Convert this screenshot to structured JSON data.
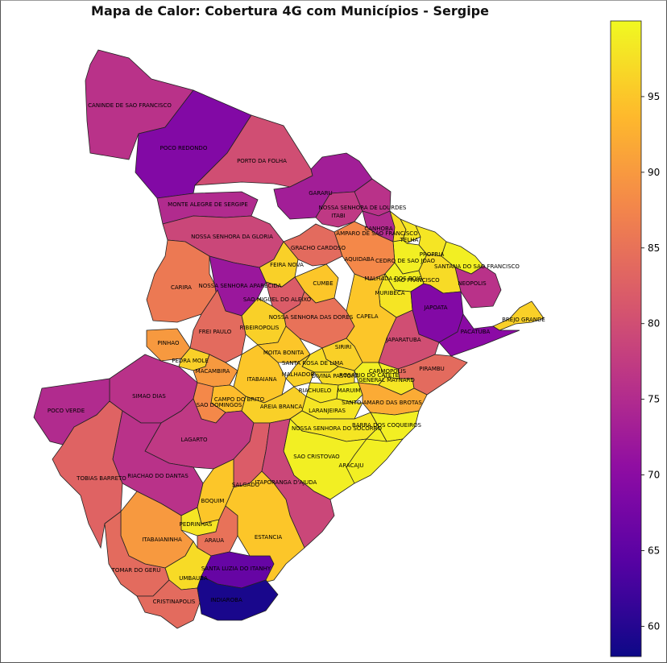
{
  "title": "Mapa de Calor: Cobertura 4G com Municípios - Sergipe",
  "colormap": "plasma",
  "colorbar": {
    "min": 58,
    "max": 100,
    "ticks": [
      "60",
      "65",
      "70",
      "75",
      "80",
      "85",
      "90",
      "95"
    ]
  },
  "chart_data": {
    "type": "choropleth",
    "value_range": [
      58,
      100
    ],
    "municipalities": [
      {
        "name": "CANINDE DE SAO FRANCISCO",
        "value": 76
      },
      {
        "name": "POCO REDONDO",
        "value": 69
      },
      {
        "name": "PORTO DA FOLHA",
        "value": 80
      },
      {
        "name": "GARARU",
        "value": 73
      },
      {
        "name": "MONTE ALEGRE DE SERGIPE",
        "value": 75
      },
      {
        "name": "NOSSA SENHORA DE LOURDES",
        "value": 76
      },
      {
        "name": "ITABI",
        "value": 77
      },
      {
        "name": "CANHOBA",
        "value": 75
      },
      {
        "name": "AMPARO DE SAO FRANCISCO",
        "value": 97
      },
      {
        "name": "TELHA",
        "value": 98
      },
      {
        "name": "NOSSA SENHORA DA GLORIA",
        "value": 79
      },
      {
        "name": "GRACHO CARDOSO",
        "value": 84
      },
      {
        "name": "PROPRIA",
        "value": 98
      },
      {
        "name": "CEDRO DE SAO JOAO",
        "value": 99
      },
      {
        "name": "AQUIDABA",
        "value": 88
      },
      {
        "name": "FEIRA NOVA",
        "value": 96
      },
      {
        "name": "SANTANA DO SAO FRANCISCO",
        "value": 99
      },
      {
        "name": "NEOPOLIS",
        "value": 76
      },
      {
        "name": "MALHADA DOS BOIS",
        "value": 99
      },
      {
        "name": "SAO FRANCISCO",
        "value": 97
      },
      {
        "name": "CARIRA",
        "value": 86
      },
      {
        "name": "NOSSA SENHORA APARECIDA",
        "value": 72
      },
      {
        "name": "CUMBE",
        "value": 95
      },
      {
        "name": "MURIBECA",
        "value": 98
      },
      {
        "name": "SAO MIGUEL DO ALEIXO",
        "value": 82
      },
      {
        "name": "JAPOATA",
        "value": 69
      },
      {
        "name": "ILHA DAS FLORES",
        "value": 99
      },
      {
        "name": "NOSSA SENHORA DAS DORES",
        "value": 85
      },
      {
        "name": "CAPELA",
        "value": 95
      },
      {
        "name": "BREJO GRANDE",
        "value": 96
      },
      {
        "name": "RIBEIROPOLIS",
        "value": 96
      },
      {
        "name": "FREI PAULO",
        "value": 84
      },
      {
        "name": "PACATUBA",
        "value": 70
      },
      {
        "name": "PINHAO",
        "value": 90
      },
      {
        "name": "SIRIRI",
        "value": 96
      },
      {
        "name": "JAPARATUBA",
        "value": 80
      },
      {
        "name": "MOITA BONITA",
        "value": 95
      },
      {
        "name": "SANTA ROSA DE LIMA",
        "value": 97
      },
      {
        "name": "PEDRA MOLE",
        "value": 96
      },
      {
        "name": "MACAMBIRA",
        "value": 90
      },
      {
        "name": "ITABAIANA",
        "value": 95
      },
      {
        "name": "MALHADOR",
        "value": 96
      },
      {
        "name": "DIVINA PASTORA",
        "value": 97
      },
      {
        "name": "ROSARIO DO CATETE",
        "value": 99
      },
      {
        "name": "CARMOPOLIS",
        "value": 99
      },
      {
        "name": "GENERAL MAYNARD",
        "value": 98
      },
      {
        "name": "PIRAMBU",
        "value": 84
      },
      {
        "name": "SIMAO DIAS",
        "value": 76
      },
      {
        "name": "RIACHUELO",
        "value": 98
      },
      {
        "name": "MARUIM",
        "value": 99
      },
      {
        "name": "CAMPO DO BRITO",
        "value": 94
      },
      {
        "name": "SAO DOMINGOS",
        "value": 88
      },
      {
        "name": "AREIA BRANCA",
        "value": 96
      },
      {
        "name": "SANTO AMARO DAS BROTAS",
        "value": 92
      },
      {
        "name": "LARANJEIRAS",
        "value": 98
      },
      {
        "name": "POCO VERDE",
        "value": 75
      },
      {
        "name": "BARRA DOS COQUEIROS",
        "value": 99
      },
      {
        "name": "NOSSA SENHORA DO SOCORRO",
        "value": 98
      },
      {
        "name": "LAGARTO",
        "value": 77
      },
      {
        "name": "SAO CRISTOVAO",
        "value": 99
      },
      {
        "name": "ARACAJU",
        "value": 99
      },
      {
        "name": "TOBIAS BARRETO",
        "value": 83
      },
      {
        "name": "RIACHAO DO DANTAS",
        "value": 76
      },
      {
        "name": "SALGADO",
        "value": 82
      },
      {
        "name": "ITAPORANGA D'AJUDA",
        "value": 79
      },
      {
        "name": "BOQUIM",
        "value": 95
      },
      {
        "name": "PEDRINHAS",
        "value": 98
      },
      {
        "name": "ITABAIANINHA",
        "value": 90
      },
      {
        "name": "ARAUA",
        "value": 85
      },
      {
        "name": "ESTANCIA",
        "value": 95
      },
      {
        "name": "TOMAR DO GERU",
        "value": 84
      },
      {
        "name": "SANTA LUZIA DO ITANHY",
        "value": 66
      },
      {
        "name": "UMBAUBA",
        "value": 97
      },
      {
        "name": "CRISTINAPOLIS",
        "value": 84
      },
      {
        "name": "INDIAROBA",
        "value": 59
      }
    ]
  }
}
